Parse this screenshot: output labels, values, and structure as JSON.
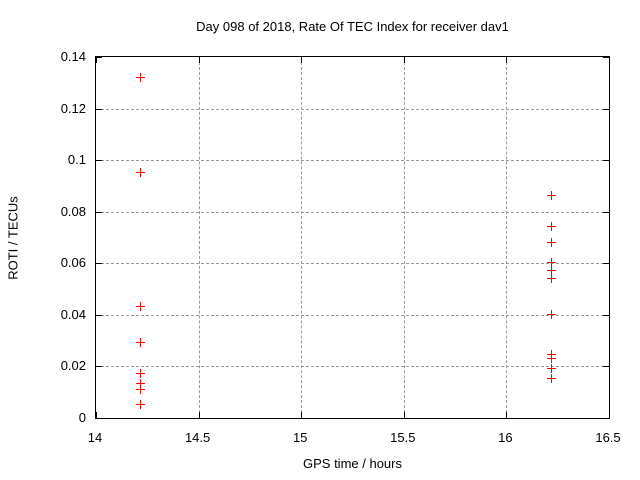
{
  "chart_data": {
    "type": "scatter",
    "title": "Day 098 of 2018, Rate Of TEC Index for receiver dav1",
    "xlabel": "GPS time / hours",
    "ylabel": "ROTI / TECUs",
    "xlim": [
      14,
      16.5
    ],
    "ylim": [
      0,
      0.14
    ],
    "x_ticks": [
      14,
      14.5,
      15,
      15.5,
      16,
      16.5
    ],
    "x_tick_labels": [
      "14",
      "14.5",
      "15",
      "15.5",
      "16",
      "16.5"
    ],
    "y_ticks": [
      0,
      0.02,
      0.04,
      0.06,
      0.08,
      0.1,
      0.12,
      0.14
    ],
    "y_tick_labels": [
      "0",
      "0.02",
      "0.04",
      "0.06",
      "0.08",
      "0.1",
      "0.12",
      "0.14"
    ],
    "grid": true,
    "legend_position": "none",
    "marker": "plus",
    "marker_color": "#ff0000",
    "marker_size": 9,
    "grid_color": "#9a9a9a",
    "axis_color": "#000000",
    "series": [
      {
        "name": "ROTI",
        "points": [
          [
            14.22,
            0.132
          ],
          [
            14.22,
            0.095
          ],
          [
            14.22,
            0.043
          ],
          [
            14.22,
            0.029
          ],
          [
            14.22,
            0.017
          ],
          [
            14.22,
            0.013
          ],
          [
            14.22,
            0.011
          ],
          [
            14.22,
            0.005
          ],
          [
            16.22,
            0.086
          ],
          [
            16.22,
            0.074
          ],
          [
            16.22,
            0.068
          ],
          [
            16.22,
            0.06
          ],
          [
            16.22,
            0.057
          ],
          [
            16.22,
            0.054
          ],
          [
            16.22,
            0.04
          ],
          [
            16.22,
            0.0245
          ],
          [
            16.22,
            0.023
          ],
          [
            16.22,
            0.019
          ],
          [
            16.22,
            0.015
          ]
        ]
      }
    ]
  }
}
